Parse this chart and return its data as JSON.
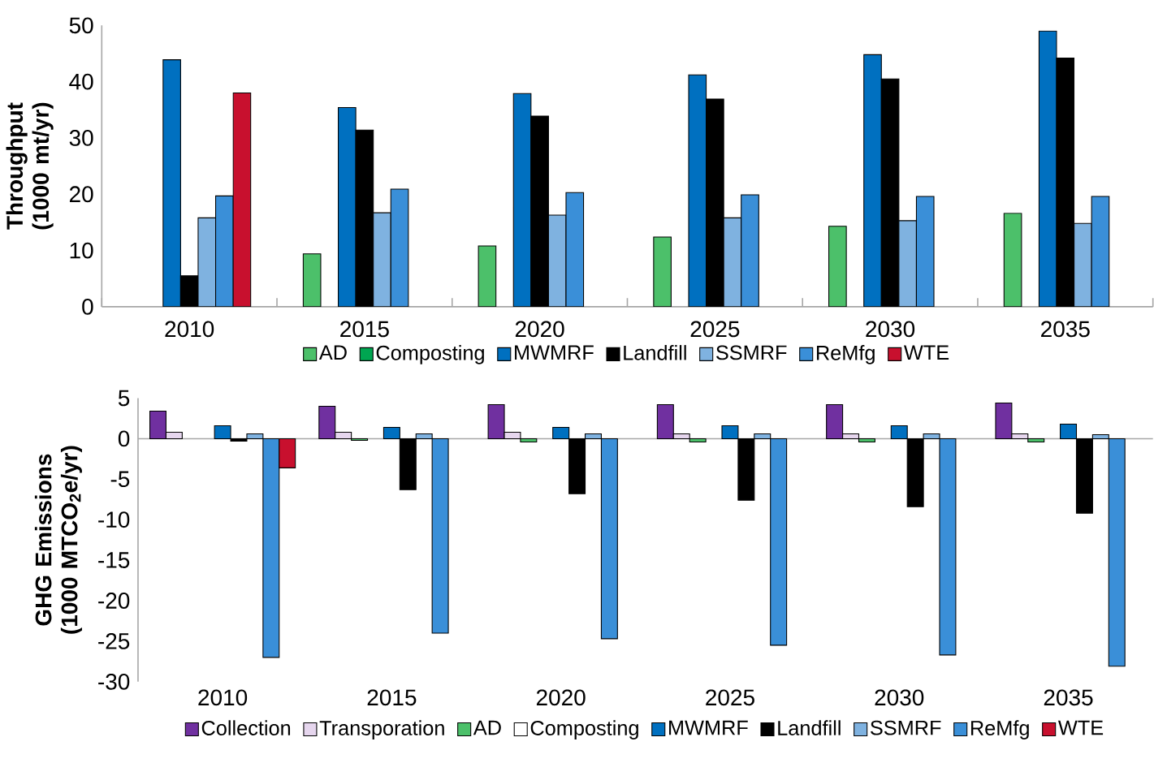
{
  "chart_data": [
    {
      "type": "bar",
      "ylabel": "Throughput (1000 mt/yr)",
      "categories": [
        "2010",
        "2015",
        "2020",
        "2025",
        "2030",
        "2035"
      ],
      "ylim": [
        0,
        50
      ],
      "yticks": [
        0,
        10,
        20,
        30,
        40,
        50
      ],
      "legend": "bottom",
      "series": [
        {
          "name": "AD",
          "color": "#4cc06a",
          "values": [
            null,
            9.4,
            10.8,
            12.4,
            14.3,
            16.6
          ]
        },
        {
          "name": "Composting",
          "color": "#00a651",
          "values": [
            null,
            null,
            null,
            null,
            null,
            null
          ]
        },
        {
          "name": "MWMRF",
          "color": "#0070c0",
          "values": [
            43.9,
            35.4,
            37.9,
            41.2,
            44.8,
            49.0
          ]
        },
        {
          "name": "Landfill",
          "color": "#000000",
          "values": [
            5.5,
            31.4,
            33.9,
            36.9,
            40.5,
            44.2
          ]
        },
        {
          "name": "SSMRF",
          "color": "#7fb2e0",
          "values": [
            15.8,
            16.7,
            16.3,
            15.8,
            15.3,
            14.8
          ]
        },
        {
          "name": "ReMfg",
          "color": "#3a8fd8",
          "values": [
            19.7,
            20.9,
            20.3,
            19.9,
            19.6,
            19.6
          ]
        },
        {
          "name": "WTE",
          "color": "#c8102e",
          "values": [
            38.0,
            null,
            null,
            null,
            null,
            null
          ]
        }
      ]
    },
    {
      "type": "bar",
      "ylabel": "GHG Emissions (1000 MTCO$_{2}$e/yr)",
      "categories": [
        "2010",
        "2015",
        "2020",
        "2025",
        "2030",
        "2035"
      ],
      "ylim": [
        -30,
        5
      ],
      "yticks": [
        -30,
        -25,
        -20,
        -15,
        -10,
        -5,
        0,
        5
      ],
      "legend": "bottom",
      "series": [
        {
          "name": "Collection",
          "color": "#7030a0",
          "values": [
            3.4,
            4.0,
            4.2,
            4.2,
            4.2,
            4.4
          ]
        },
        {
          "name": "Transporation",
          "color": "#e6d6ee",
          "values": [
            0.8,
            0.8,
            0.8,
            0.6,
            0.6,
            0.6
          ]
        },
        {
          "name": "AD",
          "color": "#4cc06a",
          "values": [
            null,
            -0.2,
            -0.4,
            -0.4,
            -0.4,
            -0.4
          ]
        },
        {
          "name": "Composting",
          "color": "#ffffff",
          "values": [
            null,
            null,
            null,
            null,
            null,
            null
          ]
        },
        {
          "name": "MWMRF",
          "color": "#0070c0",
          "values": [
            1.6,
            1.4,
            1.4,
            1.6,
            1.6,
            1.8
          ]
        },
        {
          "name": "Landfill",
          "color": "#000000",
          "values": [
            -0.3,
            -6.3,
            -6.8,
            -7.6,
            -8.4,
            -9.2
          ]
        },
        {
          "name": "SSMRF",
          "color": "#7fb2e0",
          "values": [
            0.6,
            0.6,
            0.6,
            0.6,
            0.6,
            0.5
          ]
        },
        {
          "name": "ReMfg",
          "color": "#3a8fd8",
          "values": [
            -27.0,
            -24.0,
            -24.7,
            -25.5,
            -26.7,
            -28.1
          ]
        },
        {
          "name": "WTE",
          "color": "#c8102e",
          "values": [
            -3.6,
            null,
            null,
            null,
            null,
            null
          ]
        }
      ]
    }
  ]
}
